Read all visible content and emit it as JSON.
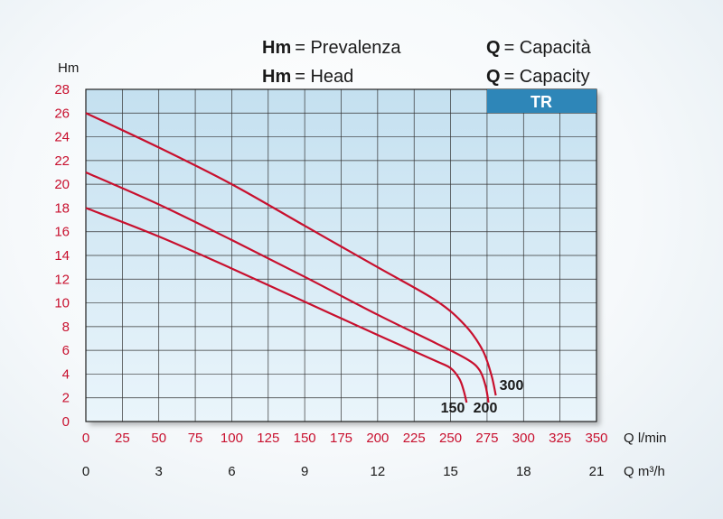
{
  "legend": {
    "row1_left_symbol": "Hm",
    "row1_left_text": "= Prevalenza",
    "row2_left_symbol": "Hm",
    "row2_left_text": "= Head",
    "row1_right_symbol": "Q",
    "row1_right_text": "= Capacità",
    "row2_right_symbol": "Q",
    "row2_right_text": "= Capacity"
  },
  "badge": {
    "label": "TR",
    "color": "#2e86b8"
  },
  "chart_data": {
    "type": "line",
    "ylabel": "Hm",
    "ylim": [
      0,
      28
    ],
    "yticks": [
      "0",
      "2",
      "4",
      "6",
      "8",
      "10",
      "12",
      "14",
      "16",
      "18",
      "20",
      "22",
      "24",
      "26",
      "28"
    ],
    "xlabel": "Q l/min",
    "xlim": [
      0,
      350
    ],
    "xticks": [
      "0",
      "25",
      "50",
      "75",
      "100",
      "125",
      "150",
      "175",
      "200",
      "225",
      "250",
      "275",
      "300",
      "325",
      "350"
    ],
    "x2label": "Q m³/h",
    "x2lim": [
      0,
      21
    ],
    "x2ticks": [
      "0",
      "3",
      "6",
      "9",
      "12",
      "15",
      "18",
      "21"
    ],
    "grid": true,
    "colors": {
      "curve": "#c8102e",
      "tick": "#c8102e",
      "plot_top": "#c4e0f0",
      "plot_bottom": "#eaf5fb",
      "grid": "#333333"
    },
    "series": [
      {
        "name": "150",
        "x": [
          0,
          50,
          100,
          150,
          200,
          240,
          250,
          256,
          259,
          261
        ],
        "y": [
          18,
          15.6,
          12.9,
          10.1,
          7.3,
          5.1,
          4.5,
          3.6,
          2.6,
          1.6
        ]
      },
      {
        "name": "200",
        "x": [
          0,
          50,
          100,
          150,
          200,
          240,
          262,
          270,
          274,
          276
        ],
        "y": [
          21,
          18.3,
          15.3,
          12.2,
          9.0,
          6.6,
          5.2,
          4.3,
          3.0,
          1.6
        ]
      },
      {
        "name": "300",
        "x": [
          0,
          50,
          100,
          150,
          200,
          240,
          260,
          272,
          278,
          281
        ],
        "y": [
          26,
          23.1,
          20.0,
          16.5,
          13.0,
          10.2,
          8.1,
          6.0,
          3.9,
          2.2
        ]
      }
    ]
  }
}
